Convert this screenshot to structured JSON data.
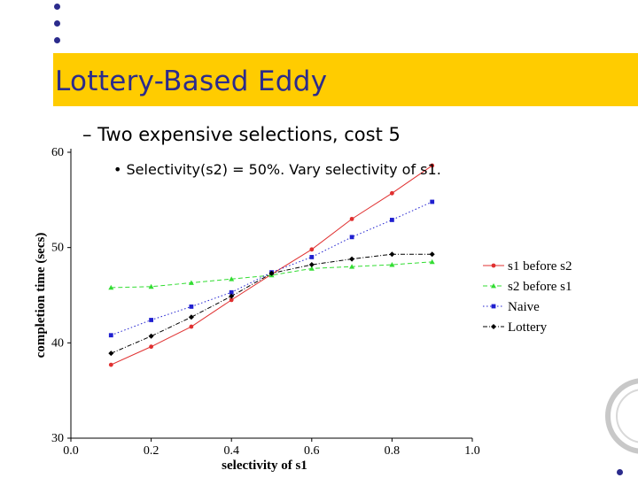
{
  "slide": {
    "title": "Lottery-Based Eddy",
    "bullet1": "– Two expensive selections, cost 5",
    "bullet2": "• Selectivity(s2) = 50%.  Vary selectivity of s1.",
    "accent_color": "#ffcc00",
    "title_color": "#2b2b8c"
  },
  "chart_data": {
    "type": "line",
    "xlabel": "selectivity of s1",
    "ylabel": "completion time (secs)",
    "xlim": [
      0.0,
      1.0
    ],
    "ylim": [
      30,
      60
    ],
    "xticks": [
      "0.0",
      "0.2",
      "0.4",
      "0.6",
      "0.8",
      "1.0"
    ],
    "yticks": [
      "30",
      "40",
      "50",
      "60"
    ],
    "x": [
      0.1,
      0.2,
      0.3,
      0.4,
      0.5,
      0.6,
      0.7,
      0.8,
      0.9
    ],
    "legend_position": "right",
    "series": [
      {
        "name": "s1 before s2",
        "color": "#e03030",
        "dash": "solid",
        "marker": "circle",
        "values": [
          37.7,
          39.6,
          41.7,
          44.5,
          47.2,
          49.8,
          53.0,
          55.7,
          58.6
        ]
      },
      {
        "name": "s2 before s1",
        "color": "#33dd33",
        "dash": "dashed",
        "marker": "triangle",
        "values": [
          45.8,
          45.9,
          46.3,
          46.7,
          47.1,
          47.8,
          48.0,
          48.2,
          48.5
        ]
      },
      {
        "name": "Naive",
        "color": "#2020d0",
        "dash": "dotted",
        "marker": "square",
        "values": [
          40.8,
          42.4,
          43.8,
          45.3,
          47.4,
          49.0,
          51.1,
          52.9,
          54.8
        ]
      },
      {
        "name": "Lottery",
        "color": "#000000",
        "dash": "dashdot",
        "marker": "diamond",
        "values": [
          38.9,
          40.7,
          42.7,
          44.9,
          47.3,
          48.2,
          48.8,
          49.3,
          49.3
        ]
      }
    ]
  }
}
